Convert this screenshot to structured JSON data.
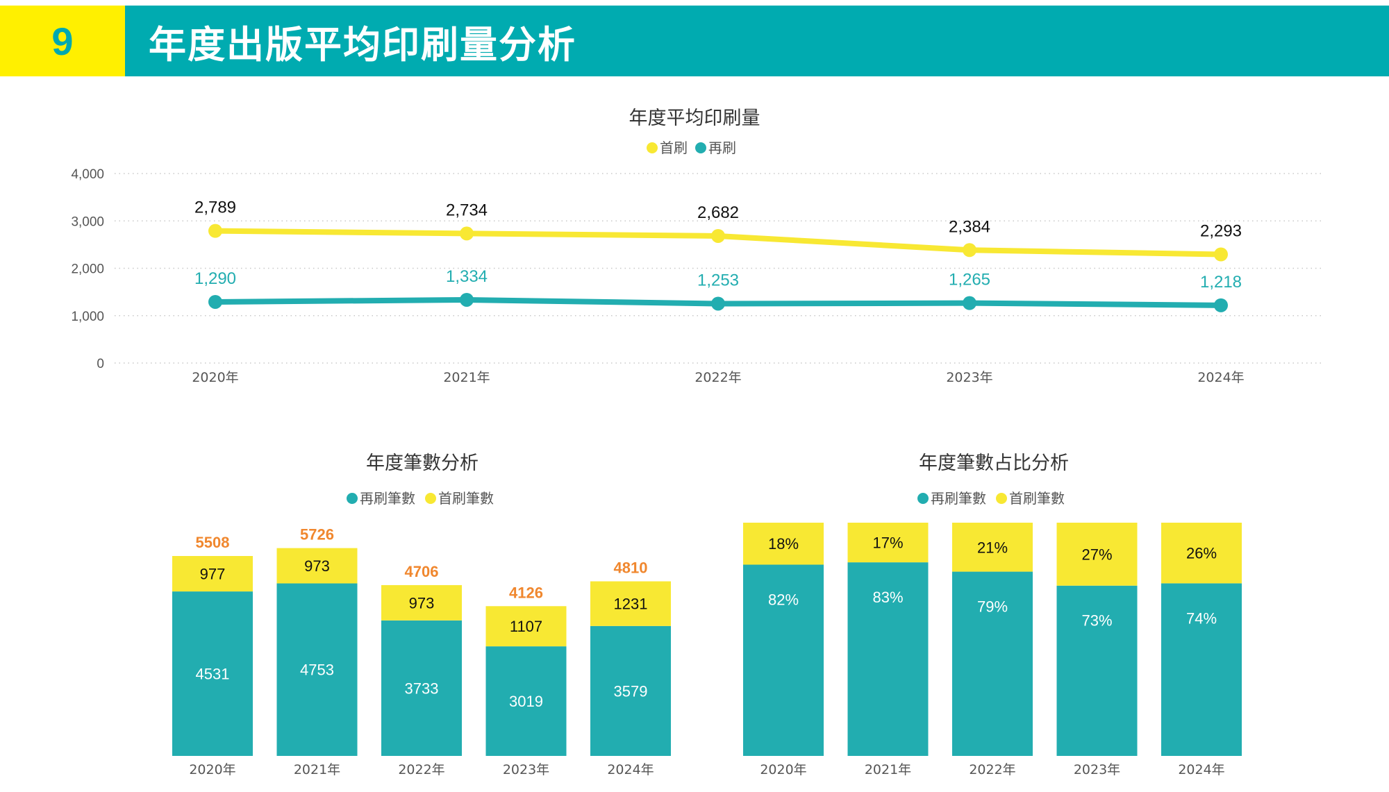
{
  "header": {
    "section_number": "9",
    "title": "年度出版平均印刷量分析"
  },
  "colors": {
    "header_teal": "#00ABB0",
    "header_yellow": "#FFF000",
    "first_print_yellow": "#F8E833",
    "reprint_teal": "#22ADB0",
    "total_orange": "#F0872E"
  },
  "chart_data": [
    {
      "id": "avg-print-run",
      "type": "line",
      "title": "年度平均印刷量",
      "xlabel": "",
      "ylabel": "",
      "categories": [
        "2020年",
        "2021年",
        "2022年",
        "2023年",
        "2024年"
      ],
      "ylim": [
        0,
        4000
      ],
      "yticks": [
        0,
        1000,
        2000,
        3000,
        4000
      ],
      "ytick_labels": [
        "0",
        "1,000",
        "2,000",
        "3,000",
        "4,000"
      ],
      "grid": true,
      "legend_position": "top-center",
      "series": [
        {
          "name": "首刷",
          "color": "#F8E833",
          "label_color": "#111111",
          "values": [
            2789,
            2734,
            2682,
            2384,
            2293
          ],
          "labels": [
            "2,789",
            "2,734",
            "2,682",
            "2,384",
            "2,293"
          ]
        },
        {
          "name": "再刷",
          "color": "#22ADB0",
          "label_color": "#22ADB0",
          "values": [
            1290,
            1334,
            1253,
            1265,
            1218
          ],
          "labels": [
            "1,290",
            "1,334",
            "1,253",
            "1,265",
            "1,218"
          ]
        }
      ]
    },
    {
      "id": "annual-count",
      "type": "bar",
      "stacked": true,
      "title": "年度筆數分析",
      "xlabel": "",
      "ylabel": "",
      "categories": [
        "2020年",
        "2021年",
        "2022年",
        "2023年",
        "2024年"
      ],
      "legend_position": "top-center",
      "grid": false,
      "legend": [
        "再刷筆數",
        "首刷筆數"
      ],
      "series": [
        {
          "name": "再刷筆數",
          "color": "#22ADB0",
          "values": [
            4531,
            4753,
            3733,
            3019,
            3579
          ]
        },
        {
          "name": "首刷筆數",
          "color": "#F8E833",
          "values": [
            977,
            973,
            973,
            1107,
            1231
          ]
        }
      ],
      "totals": [
        5508,
        5726,
        4706,
        4126,
        4810
      ]
    },
    {
      "id": "annual-share",
      "type": "bar",
      "stacked": true,
      "percent": true,
      "title": "年度筆數占比分析",
      "xlabel": "",
      "ylabel": "",
      "categories": [
        "2020年",
        "2021年",
        "2022年",
        "2023年",
        "2024年"
      ],
      "legend_position": "top-center",
      "grid": false,
      "legend": [
        "再刷筆數",
        "首刷筆數"
      ],
      "series": [
        {
          "name": "再刷筆數",
          "color": "#22ADB0",
          "values": [
            82,
            83,
            79,
            73,
            74
          ],
          "labels": [
            "82%",
            "83%",
            "79%",
            "73%",
            "74%"
          ]
        },
        {
          "name": "首刷筆數",
          "color": "#F8E833",
          "values": [
            18,
            17,
            21,
            27,
            26
          ],
          "labels": [
            "18%",
            "17%",
            "21%",
            "27%",
            "26%"
          ]
        }
      ]
    }
  ]
}
